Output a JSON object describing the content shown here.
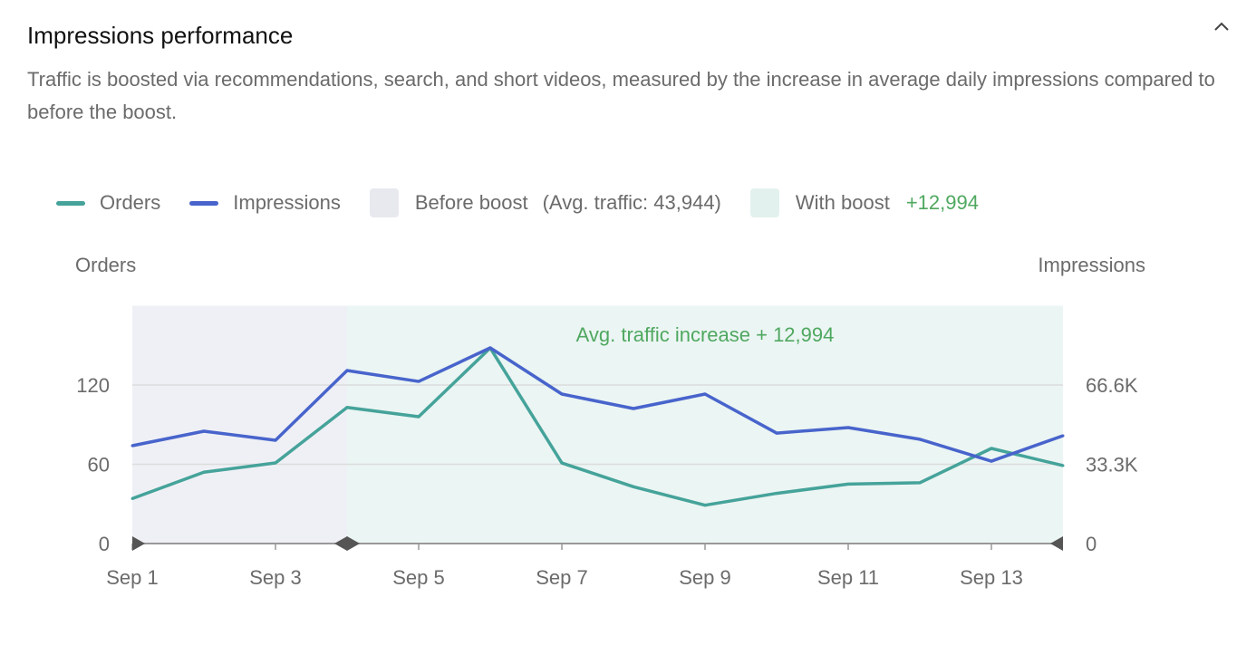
{
  "header": {
    "title": "Impressions performance",
    "description": "Traffic is boosted via recommendations, search, and short videos, measured by the increase in average daily impressions compared to before the boost.",
    "collapse_icon": "chevron-up-icon"
  },
  "legend": {
    "orders": "Orders",
    "impressions": "Impressions",
    "before": "Before boost",
    "before_note": "(Avg. traffic: 43,944)",
    "with": "With boost",
    "with_note": "+12,994"
  },
  "colors": {
    "orders": "#45a39a",
    "impressions": "#4864cc",
    "before_bg": "#eff0f5",
    "with_bg": "#ebf5f3",
    "increase_text": "#4fa860"
  },
  "chart_data": {
    "type": "line",
    "xlabel": "",
    "y_left_label": "Orders",
    "y_right_label": "Impressions",
    "x": [
      "Sep 1",
      "Sep 2",
      "Sep 3",
      "Sep 4",
      "Sep 5",
      "Sep 6",
      "Sep 7",
      "Sep 8",
      "Sep 9",
      "Sep 10",
      "Sep 11",
      "Sep 12",
      "Sep 13",
      "Sep 14"
    ],
    "x_tick_labels": [
      "Sep 1",
      "Sep 3",
      "Sep 5",
      "Sep 7",
      "Sep 9",
      "Sep 11",
      "Sep 13"
    ],
    "y_left_ticks": [
      "0",
      "60",
      "120"
    ],
    "y_right_ticks": [
      "0",
      "33.3K",
      "66.6K"
    ],
    "ylim_left": [
      0,
      180
    ],
    "ylim_right": [
      0,
      99900
    ],
    "grid": true,
    "legend_position": "top-left",
    "annotation": "Avg. traffic increase +  12,994",
    "regions": [
      {
        "label": "Before boost",
        "from": "Sep 1",
        "to": "Sep 4"
      },
      {
        "label": "With boost",
        "from": "Sep 4",
        "to": "Sep 14"
      }
    ],
    "series": [
      {
        "name": "Orders",
        "axis": "left",
        "values": [
          34,
          54,
          61,
          103,
          96,
          148,
          61,
          43,
          29,
          38,
          45,
          46,
          72,
          59
        ]
      },
      {
        "name": "Impressions",
        "axis": "right",
        "values": [
          41100,
          47200,
          43400,
          72700,
          68100,
          82200,
          62800,
          56700,
          62800,
          46400,
          48700,
          43800,
          34600,
          45300
        ]
      }
    ]
  }
}
